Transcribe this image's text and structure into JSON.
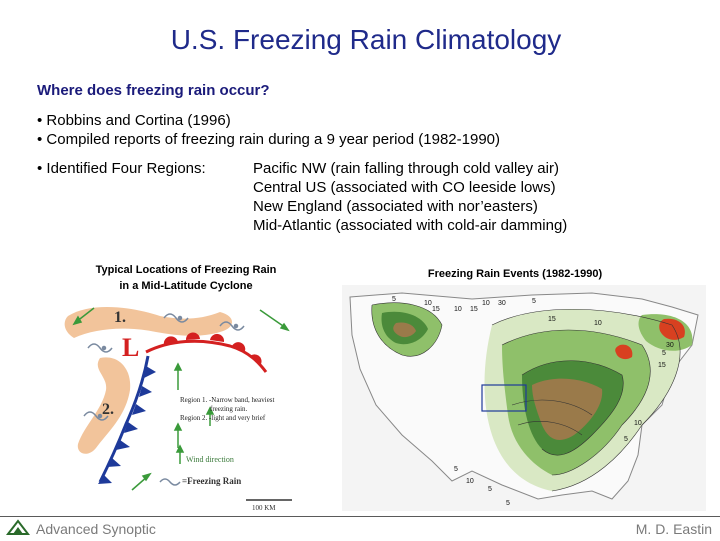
{
  "slide": {
    "title": "U.S. Freezing Rain Climatology",
    "question": "Where does freezing rain occur?",
    "bullets": [
      "• Robbins and Cortina (1996)",
      "• Compiled reports of freezing rain during a 9 year period (1982-1990)",
      "• Identified Four Regions:"
    ],
    "regions": [
      "Pacific NW (rain falling through cold valley air)",
      "Central US (associated with CO leeside lows)",
      "New England (associated with nor’easters)",
      "Mid-Atlantic (associated with cold-air damming)"
    ]
  },
  "figure_left": {
    "caption_line1": "Typical Locations of Freezing Rain",
    "caption_line2": "in a Mid-Latitude Cyclone",
    "label_1": "1.",
    "label_2": "2.",
    "low_symbol": "L",
    "region1_text_a": "Region 1. -Narrow band, heaviest",
    "region1_text_b": "freezing rain.",
    "region2_text": "Region 2. -light and very brief",
    "wind_direction": "Wind direction",
    "freezing_rain_key": "=Freezing Rain",
    "scale": "100 KM",
    "colors": {
      "band": "#f2c49b",
      "warm_front": "#d42020",
      "cold_front": "#1e3a9a",
      "arrows": "#3a9a3a"
    }
  },
  "figure_right": {
    "caption": "Freezing Rain Events (1982-1990)",
    "contour_labels": [
      "5",
      "10",
      "15",
      "10",
      "15",
      "10",
      "30",
      "15",
      "5",
      "10",
      "30",
      "5",
      "15",
      "10",
      "5",
      "5",
      "10",
      "5",
      "5"
    ],
    "colors": {
      "low": "#d9e8c4",
      "mid": "#8fc06a",
      "high": "#4b8a3a",
      "brown": "#9a7a4a",
      "peak": "#d84020"
    }
  },
  "footer": {
    "left": "Advanced Synoptic",
    "right": "M. D. Eastin"
  }
}
